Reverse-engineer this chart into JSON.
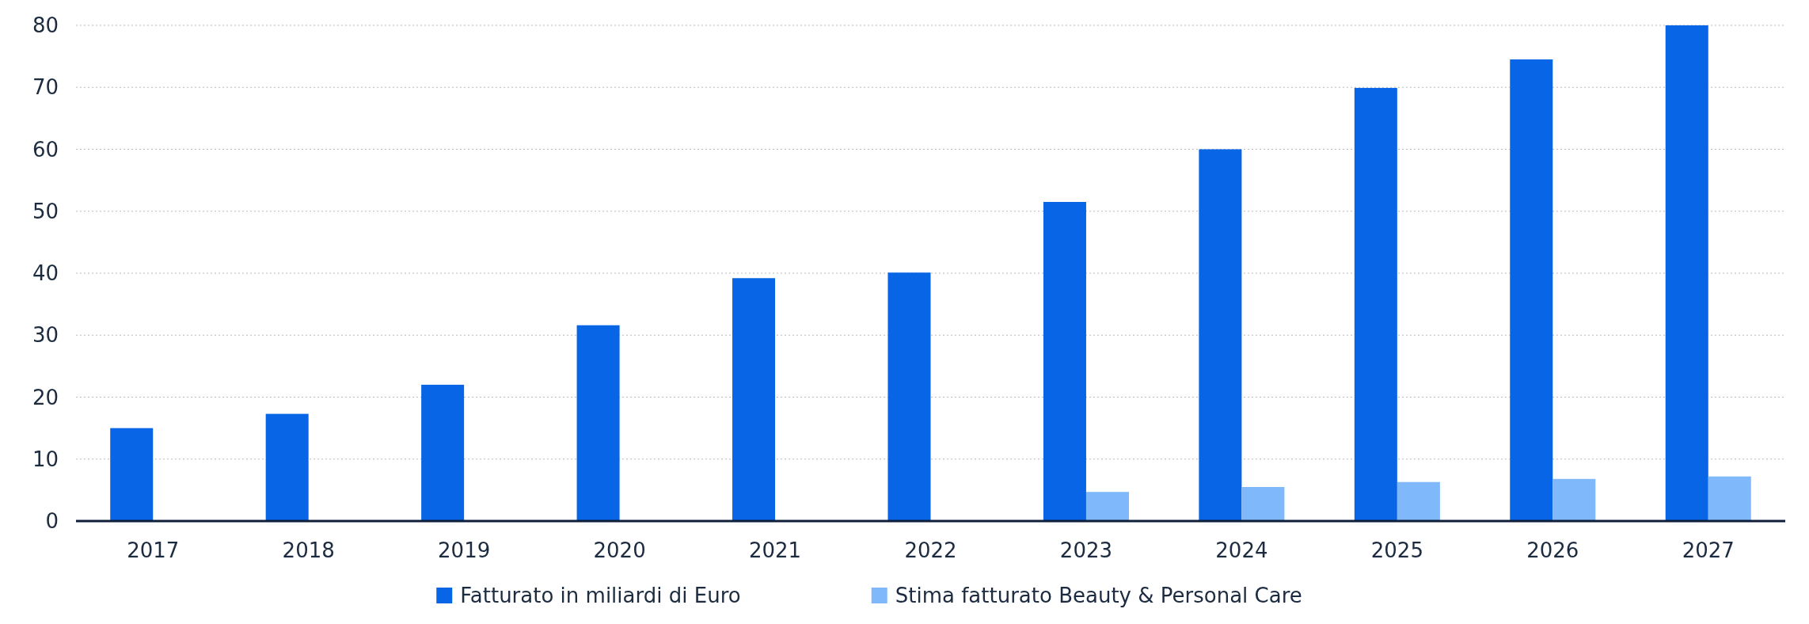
{
  "chart_data": {
    "type": "bar",
    "categories": [
      "2017",
      "2018",
      "2019",
      "2020",
      "2021",
      "2022",
      "2023",
      "2024",
      "2025",
      "2026",
      "2027"
    ],
    "series": [
      {
        "name": "Fatturato in miliardi di Euro",
        "color": "#0866e6",
        "values": [
          15,
          17.3,
          22,
          31.6,
          39.2,
          40.1,
          51.5,
          60,
          69.9,
          74.5,
          80
        ]
      },
      {
        "name": "Stima fatturato Beauty & Personal Care",
        "color": "#7fb9fb",
        "values": [
          null,
          null,
          null,
          null,
          null,
          null,
          4.7,
          5.5,
          6.3,
          6.8,
          7.2
        ]
      }
    ],
    "ylim": [
      0,
      80
    ],
    "yticks": [
      0,
      10,
      20,
      30,
      40,
      50,
      60,
      70,
      80
    ],
    "grid": "y",
    "legend": "bottom"
  }
}
